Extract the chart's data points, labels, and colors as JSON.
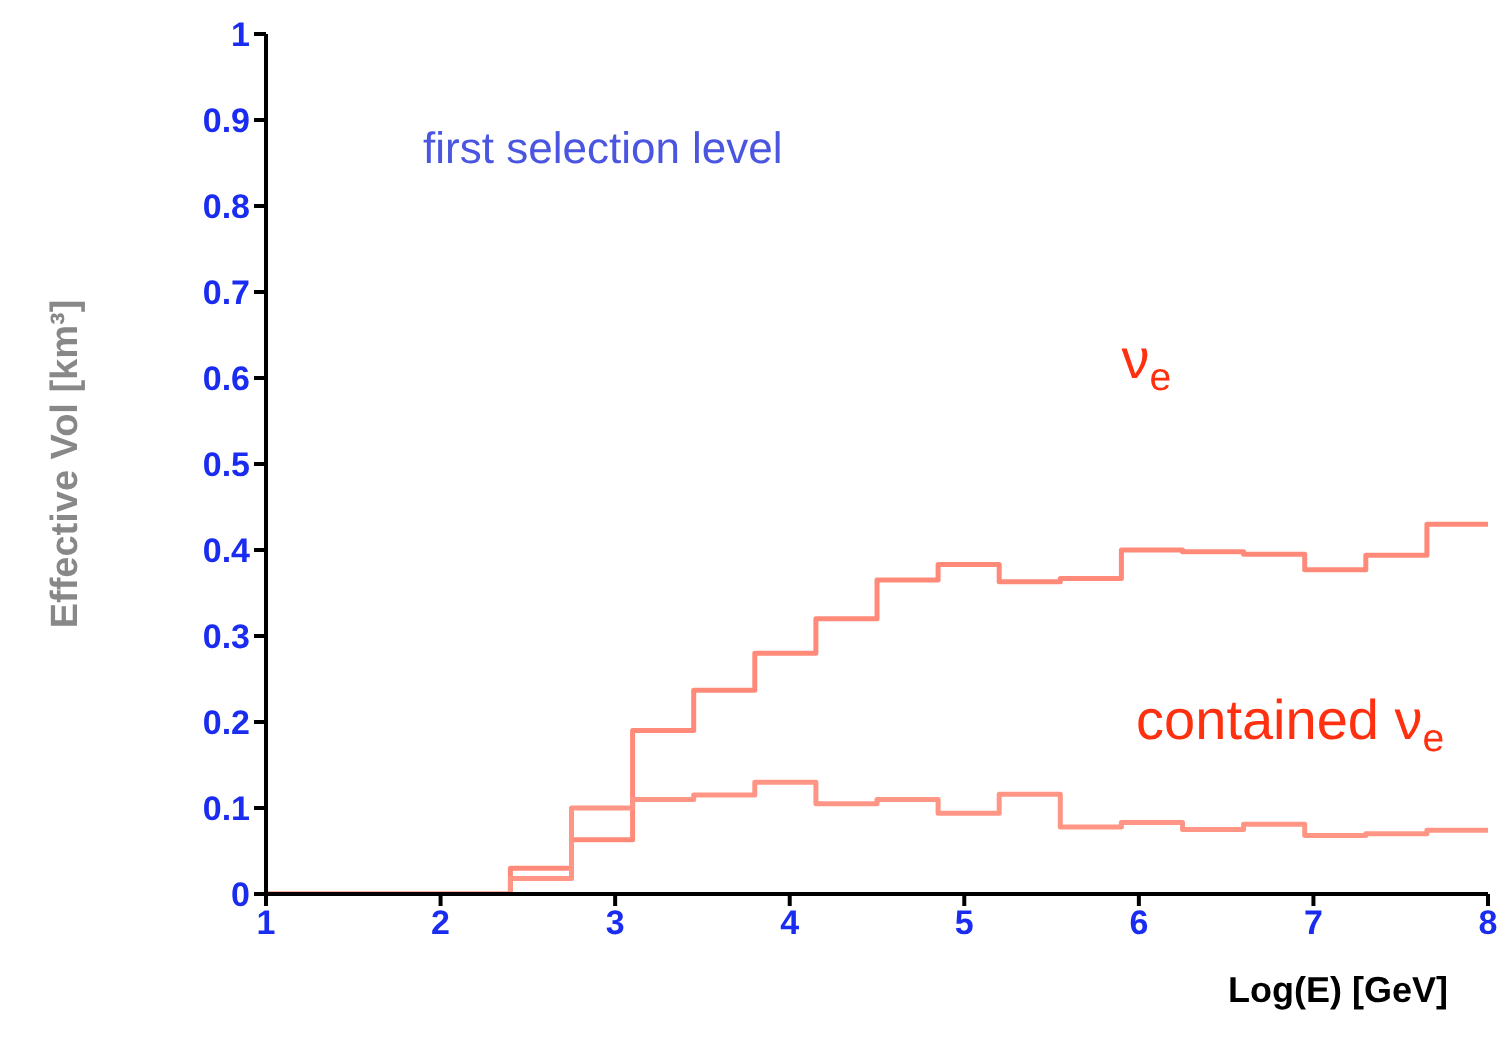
{
  "chart_data": {
    "type": "histogram",
    "xlabel": "Log(E) [GeV]",
    "ylabel": "Effective Vol [km³]",
    "bins": [
      1,
      1.35,
      1.7,
      2.05,
      2.4,
      2.75,
      3.1,
      3.45,
      3.8,
      4.15,
      4.5,
      4.85,
      5.2,
      5.55,
      5.9,
      6.25,
      6.6,
      6.95,
      7.3,
      7.65,
      8
    ],
    "series": [
      {
        "name": "ν$_{e}$",
        "color": "#ff8a7a",
        "values": [
          0,
          0,
          0,
          0,
          0.03,
          0.063,
          0.19,
          0.237,
          0.28,
          0.32,
          0.365,
          0.383,
          0.363,
          0.367,
          0.4,
          0.398,
          0.395,
          0.377,
          0.394,
          0.43
        ]
      },
      {
        "name": "contained ν$_{e}$",
        "color": "#ff9585",
        "values": [
          0,
          0,
          0,
          0,
          0.018,
          0.1,
          0.11,
          0.115,
          0.13,
          0.105,
          0.11,
          0.094,
          0.116,
          0.078,
          0.083,
          0.075,
          0.081,
          0.068,
          0.07,
          0.074
        ]
      }
    ],
    "xlim": [
      1,
      8
    ],
    "xticks": [
      1,
      2,
      3,
      4,
      5,
      6,
      7,
      8
    ],
    "ylim": [
      0,
      1
    ],
    "yticks": [
      0,
      0.1,
      0.2,
      0.3,
      0.4,
      0.5,
      0.6,
      0.7,
      0.8,
      0.9,
      1
    ],
    "annotations": [
      "first selection level"
    ],
    "grid": false,
    "legend": false
  }
}
